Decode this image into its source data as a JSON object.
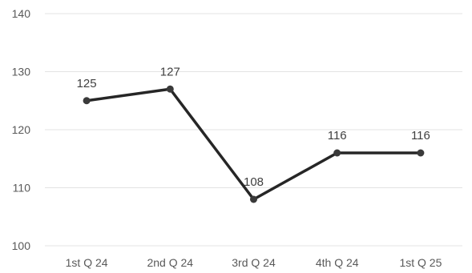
{
  "chart_data": {
    "type": "line",
    "title": "",
    "xlabel": "",
    "ylabel": "",
    "categories": [
      "1st Q 24",
      "2nd Q 24",
      "3rd Q 24",
      "4th Q 24",
      "1st Q 25"
    ],
    "series": [
      {
        "values": [
          125,
          127,
          108,
          116,
          116
        ],
        "color": "#262626",
        "marker": "circle"
      }
    ],
    "data_labels": [
      "125",
      "127",
      "108",
      "116",
      "116"
    ],
    "ylim": [
      100,
      140
    ],
    "yticks": [
      "100",
      "110",
      "120",
      "130",
      "140"
    ],
    "grid": true,
    "legend": "none"
  }
}
